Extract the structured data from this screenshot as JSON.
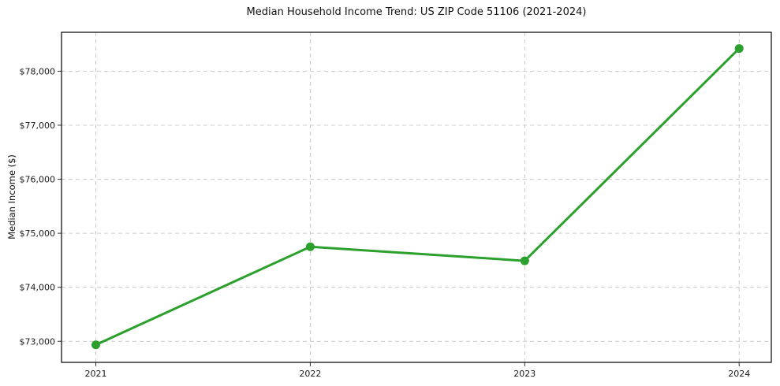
{
  "figure": {
    "background": "#ffffff"
  },
  "chart_data": {
    "type": "line",
    "title": "Median Household Income Trend: US ZIP Code 51106 (2021-2024)",
    "xlabel": "",
    "ylabel": "Median Income ($)",
    "x": [
      2021,
      2022,
      2023,
      2024
    ],
    "x_tick_labels": [
      "2021",
      "2022",
      "2023",
      "2024"
    ],
    "series": [
      {
        "name": "Median Household Income",
        "values": [
          72935,
          74750,
          74490,
          78420
        ],
        "color": "#2ca02c",
        "marker": "circle"
      }
    ],
    "yticks": [
      73000,
      74000,
      75000,
      76000,
      77000,
      78000
    ],
    "y_tick_labels": [
      "$73,000",
      "$74,000",
      "$75,000",
      "$76,000",
      "$77,000",
      "$78,000"
    ],
    "ylim": [
      72610,
      78720
    ],
    "xlim": [
      2020.84,
      2024.15
    ],
    "grid": true,
    "grid_color": "#cccccc",
    "grid_style": "dashed",
    "legend_position": "none",
    "spine_color": "#000000",
    "tick_color": "#333333",
    "text_color": "#1a1a1a"
  }
}
